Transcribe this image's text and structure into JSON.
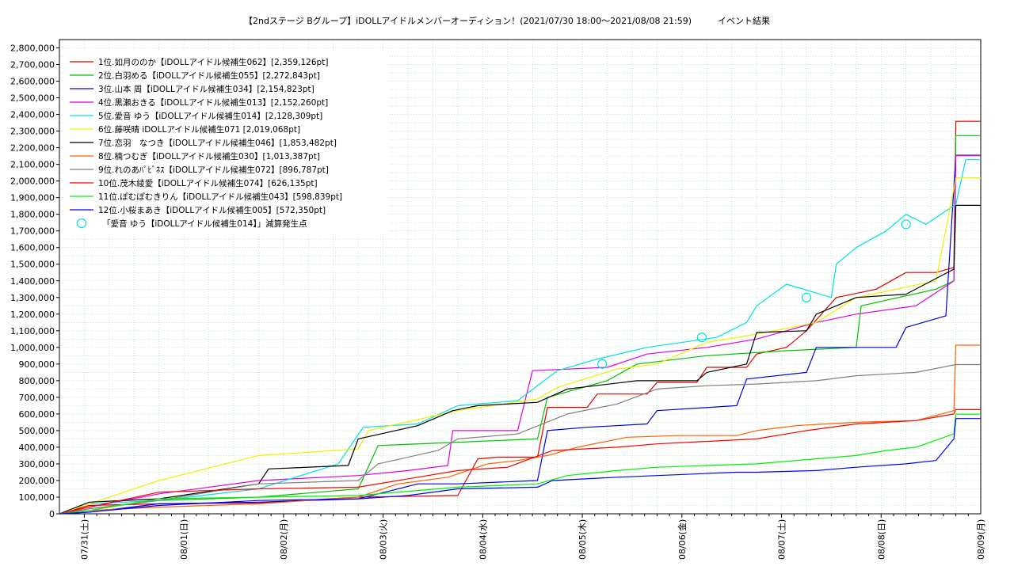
{
  "chart_data": {
    "type": "line",
    "title": "【2ndステージ Bグループ】iDOLLアイドルメンバーオーディション！(2021/07/30 18:00〜2021/08/08 21:59)　　　イベント結果",
    "xlabel": "",
    "ylabel": "",
    "ylim": [
      0,
      2850000
    ],
    "y_ticks": [
      0,
      100000,
      200000,
      300000,
      400000,
      500000,
      600000,
      700000,
      800000,
      900000,
      1000000,
      1100000,
      1200000,
      1300000,
      1400000,
      1500000,
      1600000,
      1700000,
      1800000,
      1900000,
      2000000,
      2100000,
      2200000,
      2300000,
      2400000,
      2500000,
      2600000,
      2700000,
      2800000
    ],
    "y_tick_labels": [
      "0",
      "100,000",
      "200,000",
      "300,000",
      "400,000",
      "500,000",
      "600,000",
      "700,000",
      "800,000",
      "900,000",
      "1,000,000",
      "1,100,000",
      "1,200,000",
      "1,300,000",
      "1,400,000",
      "1,500,000",
      "1,600,000",
      "1,700,000",
      "1,800,000",
      "1,900,000",
      "2,000,000",
      "2,100,000",
      "2,200,000",
      "2,300,000",
      "2,400,000",
      "2,500,000",
      "2,600,000",
      "2,700,000",
      "2,800,000"
    ],
    "x_ticks": [
      {
        "x": 0.25,
        "label": "07/31(土)"
      },
      {
        "x": 1.25,
        "label": "08/01(日)"
      },
      {
        "x": 2.25,
        "label": "08/02(月)"
      },
      {
        "x": 3.25,
        "label": "08/03(火)"
      },
      {
        "x": 4.25,
        "label": "08/04(水)"
      },
      {
        "x": 5.25,
        "label": "08/05(木)"
      },
      {
        "x": 6.25,
        "label": "08/06(金)"
      },
      {
        "x": 7.25,
        "label": "08/07(土)"
      },
      {
        "x": 8.25,
        "label": "08/08(日)"
      },
      {
        "x": 9.25,
        "label": "08/09(月)"
      }
    ],
    "x_unit": "days since 07/30 18:00",
    "xlim": [
      0,
      9.25
    ],
    "grid": true,
    "legend_position": "top-left",
    "series": [
      {
        "name": "1位.如月ののか【iDOLLアイドル候補生062】[2,359,126pt]",
        "color": "#e00000",
        "points": [
          [
            0,
            0
          ],
          [
            0.3,
            50000
          ],
          [
            1.0,
            60000
          ],
          [
            2.0,
            65000
          ],
          [
            3.0,
            100000
          ],
          [
            4.0,
            110000
          ],
          [
            4.2,
            330000
          ],
          [
            4.4,
            340000
          ],
          [
            4.8,
            340000
          ],
          [
            4.9,
            640000
          ],
          [
            5.3,
            640000
          ],
          [
            5.4,
            720000
          ],
          [
            5.9,
            720000
          ],
          [
            6.0,
            790000
          ],
          [
            6.4,
            790000
          ],
          [
            6.5,
            880000
          ],
          [
            6.9,
            880000
          ],
          [
            7.0,
            960000
          ],
          [
            7.3,
            1000000
          ],
          [
            7.5,
            1100000
          ],
          [
            7.8,
            1300000
          ],
          [
            8.2,
            1350000
          ],
          [
            8.5,
            1450000
          ],
          [
            8.8,
            1450000
          ],
          [
            8.98,
            1480000
          ],
          [
            9.0,
            2359126
          ],
          [
            9.25,
            2359126
          ]
        ]
      },
      {
        "name": "2位.白羽める【iDOLLアイドル候補生055】[2,272,843pt]",
        "color": "#00c000",
        "points": [
          [
            0,
            0
          ],
          [
            0.3,
            30000
          ],
          [
            1.0,
            80000
          ],
          [
            2.0,
            100000
          ],
          [
            3.0,
            150000
          ],
          [
            3.2,
            410000
          ],
          [
            4.0,
            430000
          ],
          [
            4.8,
            450000
          ],
          [
            4.9,
            700000
          ],
          [
            5.5,
            800000
          ],
          [
            5.8,
            900000
          ],
          [
            6.5,
            950000
          ],
          [
            7.3,
            980000
          ],
          [
            8.0,
            1000000
          ],
          [
            8.05,
            1250000
          ],
          [
            8.8,
            1350000
          ],
          [
            8.98,
            1400000
          ],
          [
            9.0,
            2272843
          ],
          [
            9.25,
            2272843
          ]
        ]
      },
      {
        "name": "3位.山本 周【iDOLLアイドル候補生034】[2,154,823pt]",
        "color": "#0000e0",
        "points": [
          [
            0,
            0
          ],
          [
            0.3,
            10000
          ],
          [
            1.0,
            60000
          ],
          [
            2.0,
            70000
          ],
          [
            3.0,
            90000
          ],
          [
            3.6,
            180000
          ],
          [
            4.0,
            180000
          ],
          [
            4.8,
            200000
          ],
          [
            4.9,
            500000
          ],
          [
            5.3,
            520000
          ],
          [
            5.9,
            540000
          ],
          [
            6.0,
            620000
          ],
          [
            6.8,
            650000
          ],
          [
            6.9,
            810000
          ],
          [
            7.5,
            850000
          ],
          [
            7.6,
            1000000
          ],
          [
            8.4,
            1000000
          ],
          [
            8.5,
            1120000
          ],
          [
            8.9,
            1190000
          ],
          [
            9.0,
            2154823
          ],
          [
            9.25,
            2154823
          ]
        ]
      },
      {
        "name": "4位.黒瀬おきる【iDOLLアイドル候補生013】[2,152,260pt]",
        "color": "#e000e0",
        "points": [
          [
            0,
            0
          ],
          [
            0.3,
            40000
          ],
          [
            1.0,
            120000
          ],
          [
            2.0,
            200000
          ],
          [
            3.0,
            230000
          ],
          [
            3.5,
            260000
          ],
          [
            3.9,
            290000
          ],
          [
            3.95,
            500000
          ],
          [
            4.6,
            500000
          ],
          [
            4.75,
            860000
          ],
          [
            5.5,
            880000
          ],
          [
            5.9,
            960000
          ],
          [
            6.5,
            1000000
          ],
          [
            7.0,
            1050000
          ],
          [
            7.6,
            1150000
          ],
          [
            8.0,
            1200000
          ],
          [
            8.6,
            1250000
          ],
          [
            8.98,
            1400000
          ],
          [
            9.0,
            2152260
          ],
          [
            9.25,
            2152260
          ]
        ]
      },
      {
        "name": "5位.愛音 ゆう【iDOLLアイドル候補生014】[2,128,309pt]",
        "color": "#00e0e0",
        "points": [
          [
            0,
            0
          ],
          [
            0.3,
            60000
          ],
          [
            1.0,
            80000
          ],
          [
            2.0,
            150000
          ],
          [
            2.8,
            300000
          ],
          [
            3.05,
            520000
          ],
          [
            3.6,
            540000
          ],
          [
            4.0,
            650000
          ],
          [
            4.6,
            680000
          ],
          [
            5.0,
            860000
          ],
          [
            5.4,
            930000
          ],
          [
            5.9,
            1000000
          ],
          [
            6.6,
            1060000
          ],
          [
            6.9,
            1150000
          ],
          [
            7.0,
            1250000
          ],
          [
            7.3,
            1380000
          ],
          [
            7.75,
            1300000
          ],
          [
            7.8,
            1500000
          ],
          [
            8.0,
            1600000
          ],
          [
            8.3,
            1700000
          ],
          [
            8.5,
            1800000
          ],
          [
            8.7,
            1740000
          ],
          [
            9.0,
            1860000
          ],
          [
            9.1,
            2128309
          ],
          [
            9.25,
            2128309
          ]
        ]
      },
      {
        "name": "6位.藤咲晴 iDOLLアイドル候補生071 [2,019,068pt]",
        "color": "#f0f000",
        "points": [
          [
            0,
            0
          ],
          [
            0.3,
            60000
          ],
          [
            1.0,
            200000
          ],
          [
            2.0,
            350000
          ],
          [
            3.0,
            390000
          ],
          [
            3.1,
            500000
          ],
          [
            4.0,
            620000
          ],
          [
            4.8,
            690000
          ],
          [
            5.0,
            760000
          ],
          [
            5.6,
            870000
          ],
          [
            6.0,
            900000
          ],
          [
            6.5,
            1030000
          ],
          [
            7.0,
            1080000
          ],
          [
            7.6,
            1150000
          ],
          [
            8.0,
            1300000
          ],
          [
            8.8,
            1400000
          ],
          [
            9.0,
            2019068
          ],
          [
            9.25,
            2019068
          ]
        ]
      },
      {
        "name": "7位.恋羽　なつき【iDOLLアイドル候補生046】[1,853,482pt]",
        "color": "#000000",
        "points": [
          [
            0,
            0
          ],
          [
            0.3,
            70000
          ],
          [
            1.0,
            90000
          ],
          [
            2.0,
            180000
          ],
          [
            2.1,
            270000
          ],
          [
            2.9,
            290000
          ],
          [
            3.0,
            450000
          ],
          [
            3.6,
            530000
          ],
          [
            3.95,
            620000
          ],
          [
            4.2,
            650000
          ],
          [
            4.8,
            670000
          ],
          [
            5.1,
            750000
          ],
          [
            5.8,
            800000
          ],
          [
            6.4,
            800000
          ],
          [
            6.5,
            850000
          ],
          [
            6.9,
            900000
          ],
          [
            7.0,
            1090000
          ],
          [
            7.5,
            1100000
          ],
          [
            7.6,
            1200000
          ],
          [
            8.0,
            1300000
          ],
          [
            8.5,
            1320000
          ],
          [
            8.98,
            1470000
          ],
          [
            9.0,
            1853482
          ],
          [
            9.25,
            1853482
          ]
        ]
      },
      {
        "name": "8位.楠つむぎ【iDOLLアイドル候補生030】[1,013,387pt]",
        "color": "#ff6000",
        "points": [
          [
            0,
            0
          ],
          [
            0.3,
            20000
          ],
          [
            1.0,
            40000
          ],
          [
            2.0,
            60000
          ],
          [
            3.0,
            100000
          ],
          [
            3.4,
            180000
          ],
          [
            3.9,
            220000
          ],
          [
            4.3,
            300000
          ],
          [
            4.6,
            320000
          ],
          [
            4.9,
            350000
          ],
          [
            5.2,
            400000
          ],
          [
            5.7,
            460000
          ],
          [
            6.2,
            470000
          ],
          [
            6.8,
            470000
          ],
          [
            7.0,
            500000
          ],
          [
            7.4,
            530000
          ],
          [
            8.0,
            550000
          ],
          [
            8.6,
            560000
          ],
          [
            8.98,
            620000
          ],
          [
            9.0,
            1013387
          ],
          [
            9.25,
            1013387
          ]
        ]
      },
      {
        "name": "9位.れのあﾊﾟﾋﾞﾈｽ【iDOLLアイドル候補生072】[896,787pt]",
        "color": "#808080",
        "points": [
          [
            0,
            0
          ],
          [
            0.3,
            30000
          ],
          [
            1.0,
            80000
          ],
          [
            2.0,
            180000
          ],
          [
            3.0,
            200000
          ],
          [
            3.2,
            300000
          ],
          [
            3.8,
            380000
          ],
          [
            4.0,
            450000
          ],
          [
            4.6,
            480000
          ],
          [
            5.1,
            600000
          ],
          [
            5.6,
            660000
          ],
          [
            6.0,
            750000
          ],
          [
            6.5,
            770000
          ],
          [
            7.0,
            780000
          ],
          [
            7.6,
            800000
          ],
          [
            8.0,
            830000
          ],
          [
            8.6,
            850000
          ],
          [
            9.0,
            896787
          ],
          [
            9.25,
            896787
          ]
        ]
      },
      {
        "name": "10位.茂木綾愛【iDOLLアイドル候補生074】[626,135pt]",
        "color": "#ff0000",
        "points": [
          [
            0,
            0
          ],
          [
            0.3,
            40000
          ],
          [
            1.0,
            130000
          ],
          [
            2.0,
            150000
          ],
          [
            3.0,
            160000
          ],
          [
            4.0,
            260000
          ],
          [
            4.5,
            280000
          ],
          [
            4.95,
            380000
          ],
          [
            5.6,
            400000
          ],
          [
            6.0,
            420000
          ],
          [
            7.0,
            450000
          ],
          [
            7.5,
            500000
          ],
          [
            8.0,
            540000
          ],
          [
            8.6,
            560000
          ],
          [
            8.98,
            600000
          ],
          [
            9.0,
            626135
          ],
          [
            9.25,
            626135
          ]
        ]
      },
      {
        "name": "11位.ぽむぽむきりん【iDOLLアイドル候補生043】[598,839pt]",
        "color": "#00f000",
        "points": [
          [
            0,
            0
          ],
          [
            0.3,
            20000
          ],
          [
            1.0,
            90000
          ],
          [
            2.0,
            100000
          ],
          [
            3.0,
            110000
          ],
          [
            4.0,
            160000
          ],
          [
            4.8,
            180000
          ],
          [
            5.1,
            230000
          ],
          [
            5.6,
            260000
          ],
          [
            6.0,
            280000
          ],
          [
            6.5,
            290000
          ],
          [
            7.0,
            300000
          ],
          [
            7.6,
            330000
          ],
          [
            8.0,
            350000
          ],
          [
            8.3,
            380000
          ],
          [
            8.6,
            400000
          ],
          [
            8.98,
            480000
          ],
          [
            9.0,
            598839
          ],
          [
            9.25,
            598839
          ]
        ]
      },
      {
        "name": "12位.小桜まあき【iDOLLアイドル候補生005】[572,350pt]",
        "color": "#0000ff",
        "points": [
          [
            0,
            0
          ],
          [
            0.3,
            10000
          ],
          [
            1.0,
            50000
          ],
          [
            2.0,
            80000
          ],
          [
            3.0,
            90000
          ],
          [
            3.5,
            110000
          ],
          [
            4.0,
            150000
          ],
          [
            4.8,
            160000
          ],
          [
            4.95,
            200000
          ],
          [
            5.6,
            220000
          ],
          [
            6.0,
            230000
          ],
          [
            6.8,
            250000
          ],
          [
            7.0,
            250000
          ],
          [
            7.6,
            260000
          ],
          [
            8.0,
            280000
          ],
          [
            8.5,
            300000
          ],
          [
            8.8,
            320000
          ],
          [
            8.98,
            450000
          ],
          [
            9.0,
            572350
          ],
          [
            9.25,
            572350
          ]
        ]
      }
    ],
    "markers": {
      "name": "「愛音 ゆう【iDOLLアイドル候補生014】」減算発生点",
      "color": "#00e0e0",
      "points": [
        [
          5.45,
          900000
        ],
        [
          6.45,
          1060000
        ],
        [
          7.5,
          1300000
        ],
        [
          8.5,
          1740000
        ]
      ]
    }
  }
}
